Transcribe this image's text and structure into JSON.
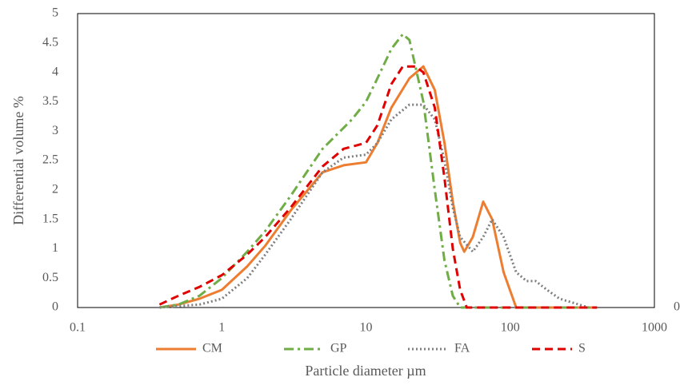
{
  "chart_data": {
    "type": "line",
    "x_label": "Particle diameter µm",
    "y_label": "Differential volume %",
    "xscale": "log",
    "xlim": [
      0.1,
      1000
    ],
    "xticks": [
      0.1,
      1,
      10,
      100,
      1000
    ],
    "ylim": [
      0,
      5
    ],
    "yticks": [
      0,
      0.5,
      1,
      1.5,
      2,
      2.5,
      3,
      3.5,
      4,
      4.5,
      5
    ],
    "y2lim": [
      0,
      5
    ],
    "y2ticks": [
      0
    ],
    "grid": false,
    "legend": "bottom",
    "series": [
      {
        "name": "CM",
        "color": "#ed7d31",
        "style": "solid",
        "x": [
          0.37,
          0.5,
          0.7,
          1,
          1.5,
          2,
          3,
          5,
          7,
          10,
          12,
          15,
          20,
          25,
          30,
          35,
          40,
          45,
          48,
          55,
          65,
          75,
          90,
          110,
          400
        ],
        "values": [
          0,
          0.05,
          0.15,
          0.3,
          0.7,
          1.05,
          1.65,
          2.3,
          2.42,
          2.47,
          2.8,
          3.4,
          3.9,
          4.1,
          3.7,
          2.8,
          1.8,
          1.1,
          0.95,
          1.2,
          1.8,
          1.5,
          0.6,
          0,
          0
        ]
      },
      {
        "name": "GP",
        "color": "#70ad47",
        "style": "dashdot",
        "x": [
          0.37,
          0.5,
          0.7,
          1,
          1.5,
          2,
          3,
          5,
          8,
          10,
          12,
          15,
          18,
          20,
          25,
          30,
          35,
          40,
          45,
          400
        ],
        "values": [
          0,
          0.05,
          0.2,
          0.5,
          0.95,
          1.3,
          1.9,
          2.7,
          3.2,
          3.5,
          3.9,
          4.4,
          4.65,
          4.55,
          3.5,
          2.0,
          0.8,
          0.2,
          0,
          0
        ]
      },
      {
        "name": "FA",
        "color": "#7f7f7f",
        "style": "dotted",
        "x": [
          0.37,
          0.7,
          1,
          1.5,
          2,
          3,
          5,
          7,
          10,
          12,
          15,
          20,
          25,
          30,
          35,
          40,
          45,
          55,
          65,
          75,
          90,
          110,
          130,
          150,
          180,
          220,
          300,
          350
        ],
        "values": [
          0,
          0.05,
          0.15,
          0.5,
          0.9,
          1.5,
          2.3,
          2.55,
          2.6,
          2.8,
          3.2,
          3.45,
          3.45,
          3.2,
          2.5,
          1.7,
          1.2,
          0.95,
          1.2,
          1.5,
          1.2,
          0.6,
          0.45,
          0.45,
          0.3,
          0.15,
          0.05,
          0
        ]
      },
      {
        "name": "S",
        "color": "#e00000",
        "style": "dashed",
        "x": [
          0.37,
          0.5,
          0.7,
          1,
          1.5,
          2,
          3,
          5,
          7,
          10,
          12,
          15,
          18,
          22,
          25,
          30,
          35,
          40,
          45,
          50,
          400
        ],
        "values": [
          0.05,
          0.2,
          0.35,
          0.55,
          0.9,
          1.2,
          1.7,
          2.4,
          2.7,
          2.8,
          3.1,
          3.8,
          4.1,
          4.1,
          4.0,
          3.4,
          2.2,
          1.0,
          0.3,
          0,
          0
        ]
      }
    ]
  }
}
